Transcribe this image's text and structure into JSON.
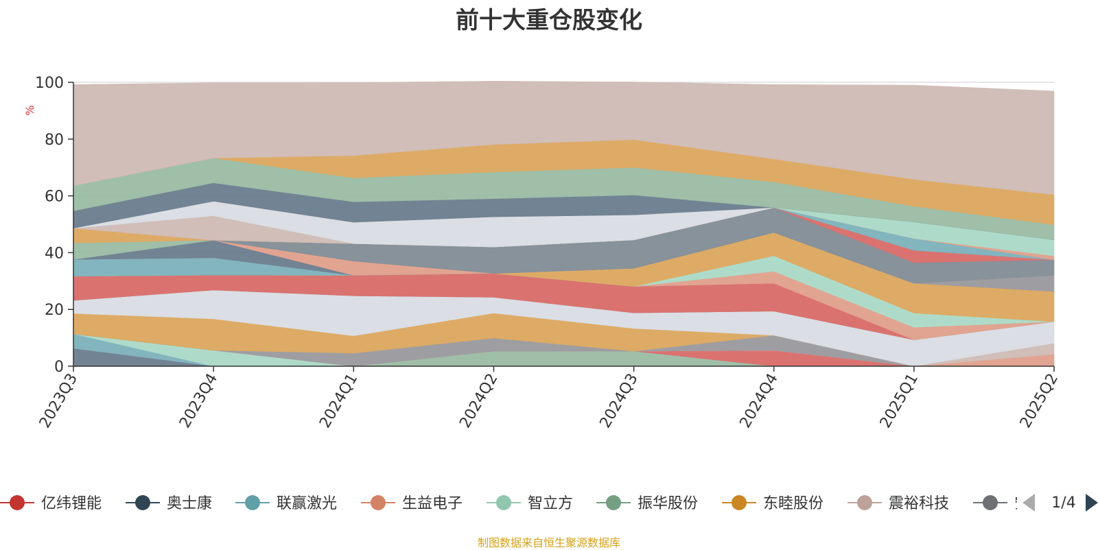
{
  "chart_data": {
    "type": "area",
    "stacked": true,
    "title": "前十大重仓股变化",
    "ylabel": "%",
    "xlabel": "",
    "ylim": [
      0,
      100
    ],
    "yticks": [
      0,
      20,
      40,
      60,
      80,
      100
    ],
    "x": [
      "2023Q3",
      "2023Q4",
      "2024Q1",
      "2024Q2",
      "2024Q3",
      "2024Q4",
      "2025Q1",
      "2025Q2"
    ],
    "grid": true,
    "legend_position": "bottom",
    "legend_page": "1/4",
    "series": [
      {
        "name": "",
        "color": "#6e7f90",
        "values": [
          6.3,
          0,
          0,
          0,
          0,
          0,
          0,
          0
        ]
      },
      {
        "name": "",
        "color": "#7fb3bd",
        "values": [
          5.1,
          0,
          0,
          0,
          0,
          0,
          0,
          0
        ]
      },
      {
        "name": "",
        "color": "#acdac8",
        "values": [
          0,
          5.6,
          0,
          0,
          0,
          0,
          0,
          0
        ]
      },
      {
        "name": "",
        "color": "#9cbda7",
        "values": [
          0,
          0,
          0,
          5.3,
          5.3,
          0,
          0,
          0
        ]
      },
      {
        "name": "",
        "color": "#d96f6c",
        "values": [
          0,
          0,
          0,
          0,
          0,
          5.6,
          0,
          0
        ]
      },
      {
        "name": "",
        "color": "#e1a28e",
        "values": [
          0,
          0,
          0,
          0,
          0,
          0,
          0,
          4.2
        ]
      },
      {
        "name": "",
        "color": "#d0bcb6",
        "values": [
          0,
          0,
          0,
          0,
          0,
          0,
          0,
          3.9
        ]
      },
      {
        "name": "",
        "color": "#9b9b9f",
        "values": [
          0,
          0,
          4.6,
          4.6,
          0,
          5.3,
          0,
          0
        ]
      },
      {
        "name": "",
        "color": "#dca962",
        "values": [
          7.2,
          11.1,
          6.1,
          8.8,
          8.0,
          0,
          0,
          0
        ]
      },
      {
        "name": "",
        "color": "#dadde4",
        "values": [
          4.6,
          10.1,
          14.1,
          5.6,
          5.5,
          8.5,
          9.3,
          7.6
        ]
      },
      {
        "name": "",
        "color": "#9b9b9f",
        "values": [
          0,
          0,
          0,
          0,
          0,
          0,
          0,
          0
        ]
      },
      {
        "name": "",
        "color": "#d96f6c",
        "values": [
          8.5,
          5.3,
          7.2,
          8.4,
          9.3,
          9.8,
          0,
          0
        ]
      },
      {
        "name": "",
        "color": "#e1a28e",
        "values": [
          0,
          0,
          0,
          0,
          0,
          4.2,
          4.4,
          0
        ]
      },
      {
        "name": "",
        "color": "#acdac8",
        "values": [
          0,
          0,
          0,
          0,
          0,
          5.5,
          5.0,
          0
        ]
      },
      {
        "name": "",
        "color": "#dca962",
        "values": [
          0,
          0,
          0,
          0,
          6.4,
          8.2,
          10.5,
          10.6
        ]
      },
      {
        "name": "",
        "color": "#9b9b9f",
        "values": [
          0,
          0,
          0,
          0,
          0,
          0,
          0,
          5.7
        ]
      },
      {
        "name": "",
        "color": "#7fb3bd",
        "values": [
          5.9,
          6.1,
          0,
          0,
          0,
          0,
          0,
          0
        ]
      },
      {
        "name": "",
        "color": "#6e7f90",
        "values": [
          0,
          6.2,
          0,
          0,
          0,
          0,
          0,
          0
        ]
      },
      {
        "name": "",
        "color": "#e1a28e",
        "values": [
          0,
          0,
          5.0,
          0,
          0,
          0,
          0,
          0
        ]
      },
      {
        "name": "",
        "color": "#848f97",
        "values": [
          0,
          0,
          6.2,
          9.3,
          10.0,
          8.8,
          7.3,
          5.5
        ]
      },
      {
        "name": "",
        "color": "#d96f6c",
        "values": [
          0,
          0,
          0,
          0,
          0,
          0,
          4.3,
          0
        ]
      },
      {
        "name": "",
        "color": "#7fb3bd",
        "values": [
          0,
          0,
          0,
          0,
          0,
          0,
          4.2,
          0
        ]
      },
      {
        "name": "",
        "color": "#9cbda7",
        "values": [
          5.8,
          0,
          0,
          0,
          0,
          0,
          0,
          0
        ]
      },
      {
        "name": "",
        "color": "#dca962",
        "values": [
          5.2,
          0,
          0,
          0,
          0,
          0,
          0,
          0
        ]
      },
      {
        "name": "",
        "color": "#e1a28e",
        "values": [
          0,
          0,
          0,
          0,
          0,
          0,
          0,
          1.4
        ]
      },
      {
        "name": "",
        "color": "#d0bcb6",
        "values": [
          0,
          8.6,
          0,
          0,
          0,
          0,
          0,
          0
        ]
      },
      {
        "name": "",
        "color": "#acdac8",
        "values": [
          0,
          0,
          0,
          0,
          0,
          0,
          5.8,
          5.6
        ]
      },
      {
        "name": "",
        "color": "#dadde4",
        "values": [
          0,
          5.1,
          7.5,
          10.6,
          8.8,
          0,
          0,
          0
        ]
      },
      {
        "name": "",
        "color": "#6e7f90",
        "values": [
          6.1,
          6.5,
          7.2,
          6.4,
          7.0,
          0,
          0,
          0
        ]
      },
      {
        "name": "",
        "color": "#9cbda7",
        "values": [
          8.9,
          8.7,
          8.4,
          9.4,
          9.7,
          9.0,
          5.5,
          5.3
        ]
      },
      {
        "name": "",
        "color": "#dca962",
        "values": [
          0,
          0,
          7.9,
          9.7,
          9.8,
          8.1,
          9.5,
          10.6
        ]
      },
      {
        "name": "",
        "color": "#d0bcb6",
        "values": [
          35.6,
          26.5,
          25.7,
          22.3,
          20.3,
          26.2,
          33.2,
          36.5
        ]
      }
    ],
    "legend": [
      {
        "label": "亿纬锂能",
        "color": "#c23531"
      },
      {
        "label": "奥士康",
        "color": "#2f4554"
      },
      {
        "label": "联赢激光",
        "color": "#61a0a8"
      },
      {
        "label": "生益电子",
        "color": "#d48265"
      },
      {
        "label": "智立方",
        "color": "#91c7ae"
      },
      {
        "label": "振华股份",
        "color": "#749f83"
      },
      {
        "label": "东睦股份",
        "color": "#ca8622"
      },
      {
        "label": "震裕科技",
        "color": "#bda29a"
      },
      {
        "label": "安培龙",
        "color": "#6e7074"
      }
    ]
  },
  "footer": {
    "source_note": "制图数据来自恒生聚源数据库"
  }
}
